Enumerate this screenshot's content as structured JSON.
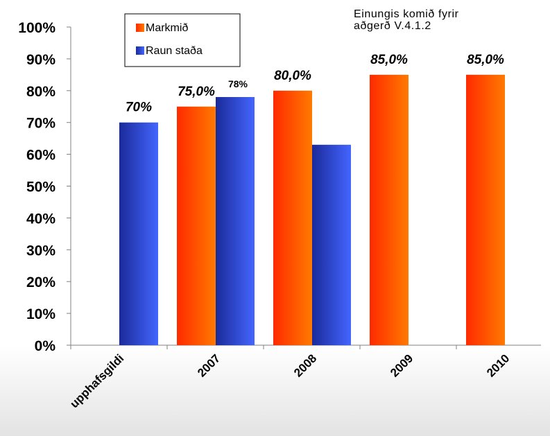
{
  "chart_data": {
    "type": "bar",
    "title": "",
    "xlabel": "",
    "ylabel": "",
    "ylim": [
      0,
      100
    ],
    "y_ticks": [
      "0%",
      "10%",
      "20%",
      "30%",
      "40%",
      "50%",
      "60%",
      "70%",
      "80%",
      "90%",
      "100%"
    ],
    "categories": [
      "upphafsgildi",
      "2007",
      "2008",
      "2009",
      "2010"
    ],
    "series": [
      {
        "name": "Markmið",
        "color": "#ff5500",
        "values": [
          null,
          75,
          80,
          85,
          85
        ],
        "labels": [
          "",
          "75,0%",
          "80,0%",
          "85,0%",
          "85,0%"
        ]
      },
      {
        "name": "Raun staða",
        "color": "#2e48e0",
        "values": [
          70,
          78,
          63,
          null,
          null
        ],
        "labels": [
          "70%",
          "78%",
          "",
          "",
          ""
        ]
      }
    ],
    "legend_position": "top-left",
    "grid": false,
    "annotation": [
      "Einungis komið fyrir",
      "aðgerð V.4.1.2"
    ]
  }
}
